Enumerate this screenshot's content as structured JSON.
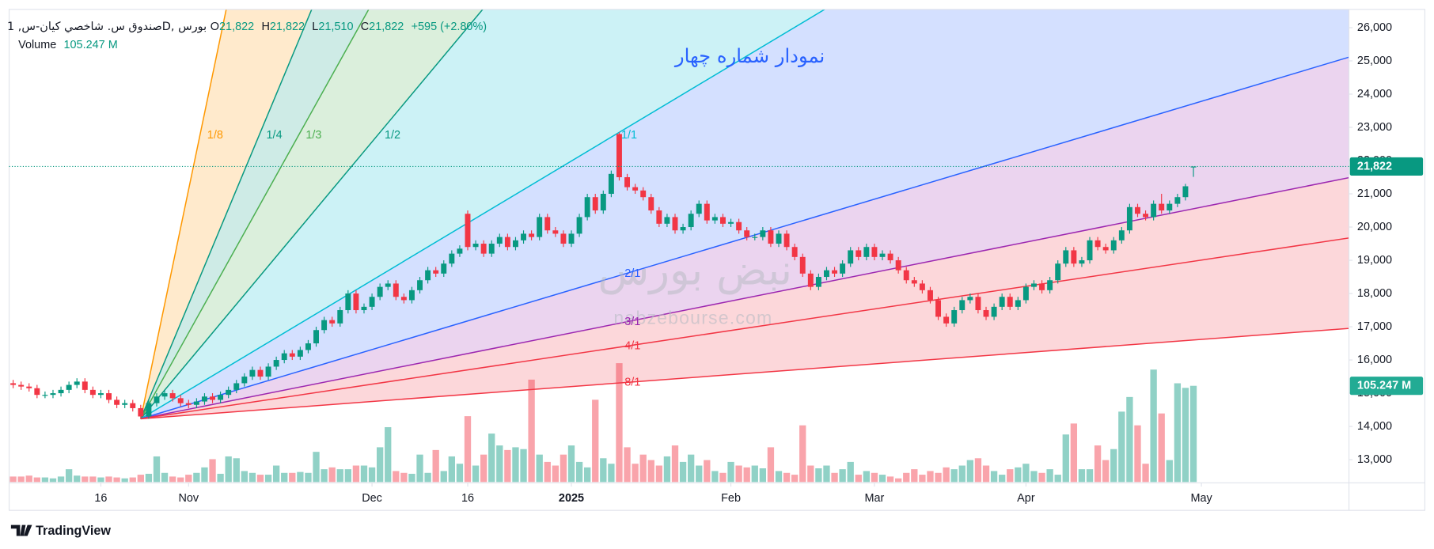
{
  "chart_data": {
    "type": "candlestick",
    "legend": {
      "symbol": "صندوق س. شاخصي كيان-س, 1D, بورس",
      "open_label": "O",
      "open": "21,822",
      "high_label": "H",
      "high": "21,822",
      "low_label": "L",
      "low": "21,510",
      "close_label": "C",
      "close": "21,822",
      "change": "+595 (+2.80%)",
      "volume_label": "Volume",
      "volume": "105.247 M"
    },
    "annotation": "نمودار شماره چهار",
    "watermark_logo": "نبض بورس",
    "watermark_url": "nabzebourse.com",
    "brand": "TradingView",
    "up_color": "#089981",
    "down_color": "#f23645",
    "grid": false,
    "xlim": [
      -0.5,
      167.5
    ],
    "xticks": [
      {
        "value": 11,
        "label": "16"
      },
      {
        "value": 22,
        "label": "Nov"
      },
      {
        "value": 45,
        "label": "Dec"
      },
      {
        "value": 57,
        "label": "16"
      },
      {
        "value": 70,
        "label": "2025"
      },
      {
        "value": 90,
        "label": "Feb"
      },
      {
        "value": 108,
        "label": "Mar"
      },
      {
        "value": 127,
        "label": "Apr"
      },
      {
        "value": 149,
        "label": "May"
      }
    ],
    "ylim": [
      12300,
      26550
    ],
    "yticks": [
      {
        "value": 13000,
        "label": "13,000"
      },
      {
        "value": 14000,
        "label": "14,000"
      },
      {
        "value": 15000,
        "label": "15,000"
      },
      {
        "value": 16000,
        "label": "16,000"
      },
      {
        "value": 17000,
        "label": "17,000"
      },
      {
        "value": 18000,
        "label": "18,000"
      },
      {
        "value": 19000,
        "label": "19,000"
      },
      {
        "value": 20000,
        "label": "20,000"
      },
      {
        "value": 21000,
        "label": "21,000"
      },
      {
        "value": 22000,
        "label": "22,000"
      },
      {
        "value": 23000,
        "label": "23,000"
      },
      {
        "value": 24000,
        "label": "24,000"
      },
      {
        "value": 25000,
        "label": "25,000"
      },
      {
        "value": 26000,
        "label": "26,000"
      }
    ],
    "volume_ylim": [
      0,
      130
    ],
    "fan": {
      "labels": [
        "1/8",
        "1/4",
        "1/3",
        "1/2",
        "1/1",
        "2/1",
        "3/1",
        "4/1",
        "8/1"
      ],
      "colors": [
        "#ff9800",
        "#089981",
        "#4caf50",
        "#089981",
        "#00bcd4",
        "#2962ff",
        "#9c27b0",
        "#f23645",
        "#f23645"
      ],
      "fill_colors": [
        "#ff9800",
        "#089981",
        "#4caf50",
        "#00bcd4",
        "#2962ff",
        "#9c27b0",
        "#f23645",
        "#f23645"
      ]
    },
    "open": [
      15300,
      15250,
      15200,
      15150,
      14950,
      14950,
      15000,
      15100,
      15250,
      15350,
      15100,
      14950,
      15000,
      14800,
      14650,
      14700,
      14550,
      14300,
      14700,
      14900,
      15000,
      14850,
      14700,
      14650,
      14750,
      14900,
      14800,
      14950,
      15100,
      15300,
      15500,
      15700,
      15500,
      15800,
      16000,
      16200,
      16100,
      16300,
      16500,
      16900,
      17200,
      17100,
      17500,
      18000,
      17500,
      17600,
      17900,
      18200,
      18300,
      17900,
      17800,
      18100,
      18400,
      18700,
      18600,
      18900,
      19200,
      20400,
      19400,
      19500,
      19200,
      19500,
      19700,
      19400,
      19600,
      19800,
      19700,
      20300,
      19900,
      19800,
      19500,
      19800,
      20300,
      20900,
      20500,
      21000,
      22800,
      21500,
      21200,
      21100,
      20900,
      20500,
      20100,
      20300,
      19900,
      20000,
      20400,
      20700,
      20200,
      20300,
      20100,
      20150,
      19900,
      19700,
      19700,
      19900,
      19500,
      19800,
      19400,
      19100,
      18600,
      18200,
      18500,
      18700,
      18600,
      18900,
      19300,
      19100,
      19400,
      19100,
      19200,
      19000,
      18700,
      18400,
      18300,
      18100,
      17800,
      17300,
      17100,
      17500,
      17800,
      17900,
      17500,
      17300,
      17600,
      17900,
      17600,
      17800,
      18200,
      18300,
      18100,
      18400,
      18900,
      19300,
      18900,
      19000,
      19600,
      19400,
      19300,
      19600,
      19900,
      20600,
      20400,
      20300,
      20700,
      20500,
      20700,
      20900,
      21822
    ],
    "high": [
      15400,
      15350,
      15300,
      15250,
      15050,
      15100,
      15200,
      15350,
      15450,
      15450,
      15200,
      15100,
      15100,
      14900,
      14800,
      14800,
      14650,
      14800,
      15000,
      15100,
      15100,
      14950,
      14800,
      14850,
      15000,
      15000,
      15050,
      15200,
      15400,
      15600,
      15800,
      15800,
      15900,
      16100,
      16300,
      16300,
      16400,
      16600,
      17000,
      17300,
      17300,
      17600,
      18100,
      18100,
      17700,
      18000,
      18300,
      18400,
      18400,
      18000,
      18200,
      18500,
      18800,
      18800,
      19000,
      19300,
      19450,
      20500,
      19600,
      19600,
      19600,
      19800,
      19800,
      19700,
      19900,
      19900,
      20400,
      20400,
      20000,
      19900,
      19900,
      20400,
      21000,
      21000,
      21100,
      21700,
      22850,
      21600,
      21300,
      21200,
      21000,
      20600,
      20400,
      20400,
      20100,
      20500,
      20800,
      20800,
      20400,
      20400,
      20250,
      20250,
      20000,
      19800,
      20000,
      20000,
      19900,
      19900,
      19500,
      19200,
      18700,
      18600,
      18800,
      18800,
      19000,
      19400,
      19400,
      19500,
      19500,
      19300,
      19300,
      19100,
      18800,
      18500,
      18400,
      18200,
      17900,
      17400,
      17600,
      17900,
      18000,
      18000,
      17600,
      17700,
      18000,
      18000,
      17900,
      18300,
      18400,
      18400,
      18500,
      19000,
      19400,
      19400,
      19100,
      19700,
      19700,
      19500,
      19700,
      20000,
      20700,
      20700,
      20500,
      20800,
      21000,
      20800,
      21000,
      21300,
      21822
    ],
    "low": [
      15150,
      15100,
      15050,
      14850,
      14850,
      14850,
      14900,
      15000,
      15150,
      15000,
      14850,
      14850,
      14700,
      14550,
      14550,
      14450,
      14230,
      14230,
      14600,
      14800,
      14750,
      14600,
      14550,
      14550,
      14650,
      14700,
      14700,
      14850,
      15000,
      15200,
      15400,
      15400,
      15400,
      15700,
      15900,
      16000,
      16000,
      16200,
      16400,
      16800,
      17000,
      17000,
      17400,
      17400,
      17400,
      17500,
      17800,
      18100,
      17800,
      17700,
      17700,
      18000,
      18300,
      18500,
      18500,
      18800,
      19100,
      19300,
      19300,
      19100,
      19100,
      19400,
      19300,
      19300,
      19500,
      19600,
      19600,
      19800,
      19700,
      19400,
      19400,
      19700,
      20200,
      20400,
      20400,
      20900,
      21400,
      21100,
      21000,
      20800,
      20400,
      20000,
      20000,
      19800,
      19800,
      19900,
      20300,
      20100,
      20100,
      20000,
      20000,
      19800,
      19600,
      19600,
      19600,
      19400,
      19400,
      19300,
      19000,
      18500,
      18100,
      18100,
      18400,
      18500,
      18500,
      18800,
      19000,
      19000,
      19000,
      19000,
      18900,
      18600,
      18300,
      18200,
      18000,
      17700,
      17200,
      17000,
      17000,
      17400,
      17700,
      17400,
      17200,
      17200,
      17500,
      17500,
      17500,
      17700,
      18100,
      18000,
      18000,
      18300,
      18800,
      18800,
      18800,
      18900,
      19300,
      19200,
      19200,
      19500,
      19800,
      20300,
      20200,
      20200,
      20400,
      20400,
      20600,
      20800,
      21510
    ],
    "close": [
      15250,
      15200,
      15150,
      14950,
      14950,
      15000,
      15100,
      15250,
      15350,
      15100,
      14950,
      15000,
      14800,
      14650,
      14700,
      14550,
      14300,
      14700,
      14900,
      15000,
      14850,
      14700,
      14650,
      14750,
      14900,
      14800,
      14950,
      15100,
      15300,
      15500,
      15700,
      15500,
      15800,
      16000,
      16200,
      16100,
      16300,
      16500,
      16900,
      17200,
      17100,
      17500,
      18000,
      17500,
      17600,
      17900,
      18200,
      18300,
      17900,
      17800,
      18100,
      18400,
      18700,
      18600,
      18900,
      19200,
      19350,
      19400,
      19500,
      19200,
      19500,
      19700,
      19400,
      19600,
      19800,
      19700,
      20300,
      19900,
      19800,
      19500,
      19800,
      20300,
      20900,
      20500,
      21000,
      21600,
      21500,
      21200,
      21100,
      20900,
      20500,
      20100,
      20300,
      19900,
      20000,
      20400,
      20700,
      20200,
      20300,
      20100,
      20150,
      19900,
      19700,
      19700,
      19900,
      19500,
      19800,
      19400,
      19100,
      18600,
      18200,
      18500,
      18700,
      18600,
      18900,
      19300,
      19100,
      19400,
      19100,
      19200,
      19000,
      18700,
      18400,
      18300,
      18100,
      17800,
      17300,
      17100,
      17500,
      17800,
      17900,
      17500,
      17300,
      17600,
      17900,
      17600,
      17800,
      18200,
      18300,
      18100,
      18400,
      18900,
      19300,
      18900,
      19000,
      19600,
      19400,
      19300,
      19600,
      19900,
      20600,
      20400,
      20300,
      20700,
      20500,
      20700,
      20900,
      21227,
      21822
    ],
    "volume": [
      6,
      6,
      7,
      5,
      5,
      4,
      6,
      14,
      7,
      6,
      6,
      5,
      6,
      5,
      4,
      5,
      8,
      9,
      28,
      10,
      6,
      5,
      8,
      10,
      16,
      25,
      9,
      28,
      26,
      12,
      10,
      8,
      8,
      18,
      10,
      10,
      11,
      10,
      33,
      14,
      16,
      14,
      14,
      18,
      18,
      16,
      38,
      60,
      12,
      10,
      9,
      30,
      10,
      35,
      12,
      28,
      20,
      72,
      18,
      30,
      53,
      40,
      35,
      38,
      36,
      112,
      30,
      22,
      18,
      30,
      40,
      22,
      16,
      90,
      26,
      20,
      130,
      38,
      20,
      30,
      24,
      18,
      28,
      40,
      22,
      30,
      18,
      24,
      12,
      10,
      22,
      18,
      16,
      18,
      15,
      38,
      12,
      10,
      8,
      62,
      18,
      15,
      18,
      10,
      14,
      22,
      8,
      12,
      10,
      8,
      6,
      4,
      10,
      14,
      8,
      12,
      10,
      16,
      14,
      18,
      24,
      26,
      18,
      12,
      8,
      14,
      16,
      20,
      12,
      10,
      14,
      8,
      52,
      64,
      14,
      14,
      40,
      24,
      36,
      77,
      93,
      62,
      20,
      123,
      75,
      24,
      108,
      103,
      105.247
    ]
  }
}
